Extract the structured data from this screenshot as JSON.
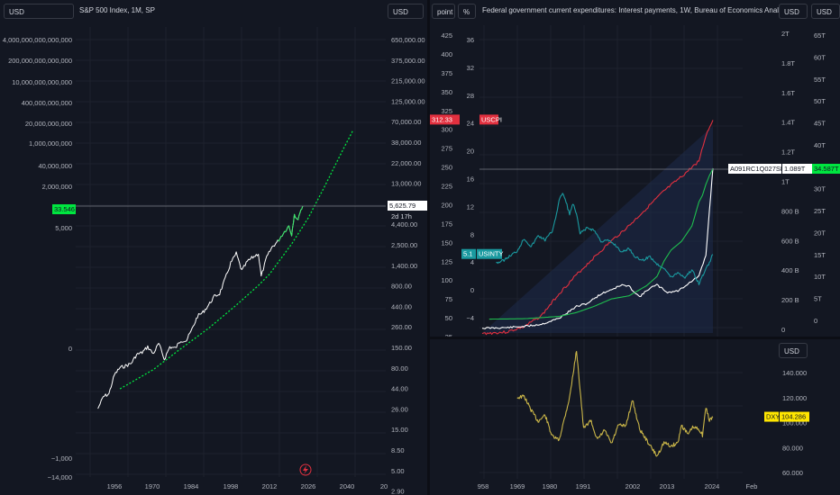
{
  "colors": {
    "background": "#131722",
    "grid": "#1e222d",
    "text": "#b2b5be",
    "sp500_line": "#ffffff",
    "trend_line": "#00e640",
    "uscpi": "#e2303f",
    "interest_payments": "#ffffff",
    "green_series": "#1fbf4f",
    "usinty": "#1a9aa0",
    "dxy": "#c9b548",
    "label_green": "#00e640",
    "label_red": "#e2303f",
    "label_teal": "#1a9aa0",
    "label_yellow": "#ffe600"
  },
  "left_pane": {
    "currency_button": "USD",
    "title": "S&P 500 Index, 1M, SP",
    "right_currency_button": "USD",
    "last_price": "5,625.79",
    "countdown": "2d 17h",
    "left_highlight_label": "33.546",
    "lightning_icon": "lightning-icon"
  },
  "right_pane": {
    "point_button": "point",
    "percent_button": "%",
    "title": "Federal government current expenditures: Interest payments, 1W, Bureau of Economics Analysis",
    "currency_button_1": "USD",
    "currency_button_2": "USD",
    "uscpi_value": "312.33",
    "uscpi_label": "USCPI",
    "usinty_value": "5.1",
    "usinty_label": "USINTY",
    "series_label": "A091RC1Q027SBEA",
    "series_value": "1.089T",
    "outer_right_value": "34.587T"
  },
  "dxy_pane": {
    "currency_button": "USD",
    "label": "DXY",
    "value": "104.286"
  },
  "chart_data": [
    {
      "type": "line",
      "title": "S&P 500 Index, 1M, SP",
      "xlabel": "",
      "ylabel": "",
      "log_scale": true,
      "x_ticks": [
        "1956",
        "1970",
        "1984",
        "1998",
        "2012",
        "2026",
        "2040",
        "20"
      ],
      "right_axis_ticks": [
        "650,000.00",
        "375,000.00",
        "215,000.00",
        "125,000.00",
        "70,000.00",
        "38,000.00",
        "22,000.00",
        "13,000.00",
        "7,500.00",
        "4,400.00",
        "2,500.00",
        "1,400.00",
        "800.00",
        "440.00",
        "260.00",
        "150.00",
        "80.00",
        "44.00",
        "26.00",
        "15.00",
        "8.50",
        "5.00",
        "2.90"
      ],
      "left_axis_ticks": [
        "4,000,000,000,000,000",
        "200,000,000,000,000",
        "10,000,000,000,000",
        "400,000,000,000",
        "20,000,000,000",
        "1,000,000,000",
        "40,000,000",
        "2,000,000",
        "5,000",
        "0",
        "−1,000",
        "−14,000"
      ],
      "series": [
        {
          "x": [
            1950,
            1952,
            1954,
            1956,
            1958,
            1960,
            1962,
            1964,
            1966,
            1968,
            1970,
            1972,
            1974,
            1976,
            1978,
            1980,
            1982,
            1984,
            1986,
            1988,
            1990,
            1992,
            1994,
            1996,
            1998,
            2000,
            2002,
            2004,
            2006,
            2008,
            2009,
            2011,
            2013,
            2015,
            2017,
            2019,
            2020,
            2021,
            2022,
            2023,
            2024
          ],
          "values": [
            17,
            24,
            26,
            45,
            55,
            58,
            62,
            80,
            85,
            100,
            82,
            110,
            70,
            100,
            96,
            120,
            120,
            165,
            240,
            270,
            330,
            420,
            460,
            700,
            1100,
            1450,
            880,
            1150,
            1300,
            1450,
            750,
            1300,
            1750,
            2050,
            2600,
            3200,
            2500,
            4500,
            3700,
            4700,
            5625.79
          ]
        },
        {
          "name": "",
          "style": "dotted",
          "x": [
            1958,
            1970,
            1980,
            1990,
            2000,
            2008,
            2012,
            2020,
            2026,
            2032,
            2038,
            2042
          ],
          "values": [
            30,
            52,
            95,
            170,
            330,
            580,
            800,
            1900,
            4000,
            10000,
            26000,
            48000
          ]
        }
      ]
    },
    {
      "type": "line",
      "title": "Federal government current expenditures: Interest payments, 1W, Bureau of Economics Analysis",
      "xlabel": "",
      "ylabel": "",
      "x_ticks": [
        "958",
        "1969",
        "1980",
        "1991",
        "2002",
        "2013",
        "2024",
        "Feb"
      ],
      "axis_point_ticks": [
        "425",
        "400",
        "375",
        "350",
        "325",
        "300",
        "275",
        "250",
        "225",
        "200",
        "175",
        "150",
        "125",
        "100",
        "75",
        "50",
        "25"
      ],
      "axis_percent_ticks": [
        "36",
        "32",
        "28",
        "24",
        "20",
        "16",
        "12",
        "8",
        "4",
        "0",
        "−4"
      ],
      "axis_usd1_ticks": [
        "2T",
        "1.8T",
        "1.6T",
        "1.4T",
        "1.2T",
        "1T",
        "800 B",
        "600 B",
        "400 B",
        "200 B",
        "0"
      ],
      "axis_usd2_ticks": [
        "65T",
        "60T",
        "55T",
        "50T",
        "45T",
        "40T",
        "35T",
        "30T",
        "25T",
        "20T",
        "15T",
        "10T",
        "5T",
        "0"
      ],
      "series": [
        {
          "name": "USCPI",
          "x": [
            1958,
            1965,
            1970,
            1975,
            1980,
            1985,
            1990,
            1995,
            2000,
            2005,
            2010,
            2015,
            2020,
            2022,
            2024
          ],
          "values": [
            29,
            31,
            38,
            53,
            82,
            107,
            130,
            152,
            172,
            195,
            218,
            237,
            258,
            292,
            312.33
          ]
        },
        {
          "name": "A091RC1Q027SBEA",
          "x": [
            1958,
            1965,
            1970,
            1975,
            1980,
            1985,
            1988,
            1992,
            1995,
            1998,
            2000,
            2003,
            2006,
            2008,
            2011,
            2014,
            2017,
            2020,
            2022,
            2023,
            2024
          ],
          "values": [
            0.008,
            0.012,
            0.02,
            0.035,
            0.075,
            0.155,
            0.175,
            0.24,
            0.27,
            0.3,
            0.29,
            0.22,
            0.28,
            0.3,
            0.25,
            0.26,
            0.31,
            0.36,
            0.5,
            0.8,
            1.089
          ]
        },
        {
          "name": "",
          "x": [
            1960,
            1970,
            1980,
            1985,
            1990,
            1995,
            2000,
            2005,
            2008,
            2010,
            2012,
            2015,
            2018,
            2020,
            2021,
            2022,
            2023,
            2024
          ],
          "values": [
            0.29,
            0.38,
            0.91,
            1.8,
            3.2,
            4.9,
            5.6,
            7.9,
            10,
            13.5,
            16,
            18,
            21.5,
            27,
            28.5,
            31,
            33,
            34.587
          ]
        },
        {
          "name": "USINTY",
          "x": [
            1962,
            1964,
            1966,
            1968,
            1970,
            1972,
            1974,
            1976,
            1978,
            1979,
            1980,
            1981,
            1982,
            1983,
            1984,
            1985,
            1986,
            1988,
            1990,
            1992,
            1994,
            1996,
            1998,
            2000,
            2002,
            2004,
            2006,
            2008,
            2010,
            2012,
            2014,
            2016,
            2018,
            2020,
            2022,
            2023,
            2024
          ],
          "values": [
            3.9,
            4.2,
            4.9,
            5.6,
            7.4,
            6.2,
            7.8,
            7.2,
            8.4,
            10.4,
            12.8,
            14.0,
            12.6,
            10.9,
            12.4,
            10.8,
            8.1,
            8.9,
            8.6,
            7.0,
            7.1,
            6.5,
            5.4,
            6.0,
            4.6,
            4.3,
            4.8,
            3.7,
            3.2,
            1.8,
            2.5,
            1.8,
            2.9,
            0.9,
            3.0,
            4.0,
            5.1
          ]
        }
      ]
    },
    {
      "type": "line",
      "title": "",
      "xlabel": "",
      "ylabel": "",
      "y_ticks": [
        "140.000",
        "120.000",
        "100.000",
        "80.000",
        "60.000"
      ],
      "series": [
        {
          "name": "DXY",
          "x": [
            1968,
            1970,
            1972,
            1974,
            1976,
            1978,
            1980,
            1983,
            1985,
            1987,
            1989,
            1991,
            1993,
            1995,
            1997,
            1999,
            2001,
            2003,
            2005,
            2008,
            2010,
            2012,
            2014,
            2015,
            2017,
            2018,
            2020,
            2021,
            2022,
            2023,
            2024
          ],
          "values": [
            120,
            121,
            110,
            101,
            106,
            89,
            86,
            120,
            158,
            95,
            102,
            86,
            94,
            83,
            98,
            97,
            118,
            95,
            86,
            73,
            84,
            81,
            84,
            98,
            90,
            96,
            95,
            90,
            112,
            102,
            104.286
          ]
        }
      ]
    }
  ]
}
